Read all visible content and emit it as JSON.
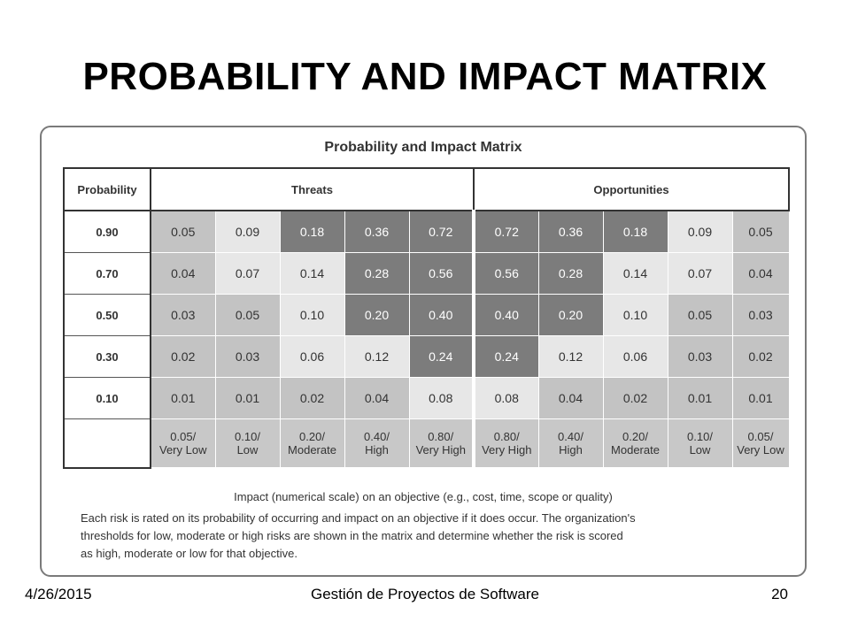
{
  "slide": {
    "title": "PROBABILITY AND IMPACT MATRIX"
  },
  "figure": {
    "title": "Probability and Impact Matrix",
    "header": {
      "probability": "Probability",
      "threats": "Threats",
      "opportunities": "Opportunities"
    },
    "rows": [
      {
        "probability": "0.90",
        "threats": [
          {
            "value": "0.05",
            "level": "moderate"
          },
          {
            "value": "0.09",
            "level": "low"
          },
          {
            "value": "0.18",
            "level": "high"
          },
          {
            "value": "0.36",
            "level": "high"
          },
          {
            "value": "0.72",
            "level": "high"
          }
        ],
        "opportunities": [
          {
            "value": "0.72",
            "level": "high"
          },
          {
            "value": "0.36",
            "level": "high"
          },
          {
            "value": "0.18",
            "level": "high"
          },
          {
            "value": "0.09",
            "level": "low"
          },
          {
            "value": "0.05",
            "level": "moderate"
          }
        ]
      },
      {
        "probability": "0.70",
        "threats": [
          {
            "value": "0.04",
            "level": "moderate"
          },
          {
            "value": "0.07",
            "level": "low"
          },
          {
            "value": "0.14",
            "level": "low"
          },
          {
            "value": "0.28",
            "level": "high"
          },
          {
            "value": "0.56",
            "level": "high"
          }
        ],
        "opportunities": [
          {
            "value": "0.56",
            "level": "high"
          },
          {
            "value": "0.28",
            "level": "high"
          },
          {
            "value": "0.14",
            "level": "low"
          },
          {
            "value": "0.07",
            "level": "low"
          },
          {
            "value": "0.04",
            "level": "moderate"
          }
        ]
      },
      {
        "probability": "0.50",
        "threats": [
          {
            "value": "0.03",
            "level": "moderate"
          },
          {
            "value": "0.05",
            "level": "moderate"
          },
          {
            "value": "0.10",
            "level": "low"
          },
          {
            "value": "0.20",
            "level": "high"
          },
          {
            "value": "0.40",
            "level": "high"
          }
        ],
        "opportunities": [
          {
            "value": "0.40",
            "level": "high"
          },
          {
            "value": "0.20",
            "level": "high"
          },
          {
            "value": "0.10",
            "level": "low"
          },
          {
            "value": "0.05",
            "level": "moderate"
          },
          {
            "value": "0.03",
            "level": "moderate"
          }
        ]
      },
      {
        "probability": "0.30",
        "threats": [
          {
            "value": "0.02",
            "level": "moderate"
          },
          {
            "value": "0.03",
            "level": "moderate"
          },
          {
            "value": "0.06",
            "level": "low"
          },
          {
            "value": "0.12",
            "level": "low"
          },
          {
            "value": "0.24",
            "level": "high"
          }
        ],
        "opportunities": [
          {
            "value": "0.24",
            "level": "high"
          },
          {
            "value": "0.12",
            "level": "low"
          },
          {
            "value": "0.06",
            "level": "low"
          },
          {
            "value": "0.03",
            "level": "moderate"
          },
          {
            "value": "0.02",
            "level": "moderate"
          }
        ]
      },
      {
        "probability": "0.10",
        "threats": [
          {
            "value": "0.01",
            "level": "moderate"
          },
          {
            "value": "0.01",
            "level": "moderate"
          },
          {
            "value": "0.02",
            "level": "moderate"
          },
          {
            "value": "0.04",
            "level": "moderate"
          },
          {
            "value": "0.08",
            "level": "low"
          }
        ],
        "opportunities": [
          {
            "value": "0.08",
            "level": "low"
          },
          {
            "value": "0.04",
            "level": "moderate"
          },
          {
            "value": "0.02",
            "level": "moderate"
          },
          {
            "value": "0.01",
            "level": "moderate"
          },
          {
            "value": "0.01",
            "level": "moderate"
          }
        ]
      }
    ],
    "impact_labels": {
      "threats": [
        {
          "value": "0.05/",
          "label": "Very Low"
        },
        {
          "value": "0.10/",
          "label": "Low"
        },
        {
          "value": "0.20/",
          "label": "Moderate"
        },
        {
          "value": "0.40/",
          "label": "High"
        },
        {
          "value": "0.80/",
          "label": "Very High"
        }
      ],
      "opportunities": [
        {
          "value": "0.80/",
          "label": "Very High"
        },
        {
          "value": "0.40/",
          "label": "High"
        },
        {
          "value": "0.20/",
          "label": "Moderate"
        },
        {
          "value": "0.10/",
          "label": "Low"
        },
        {
          "value": "0.05/",
          "label": "Very Low"
        }
      ]
    },
    "axis_caption": "Impact (numerical scale) on an objective  (e.g., cost, time, scope or quality)",
    "note_lines": [
      "Each risk is rated on its probability of occurring and impact on an objective if it does occur. The organization's",
      "thresholds for low, moderate or high risks are shown in the matrix and determine whether the risk is scored",
      "as high, moderate or low for that objective."
    ],
    "level_colors": {
      "low": "#e7e7e7",
      "moderate": "#c3c3c3",
      "high": "#7c7c7c"
    }
  },
  "footer": {
    "date": "4/26/2015",
    "course": "Gestión de Proyectos de Software",
    "page": "20"
  }
}
